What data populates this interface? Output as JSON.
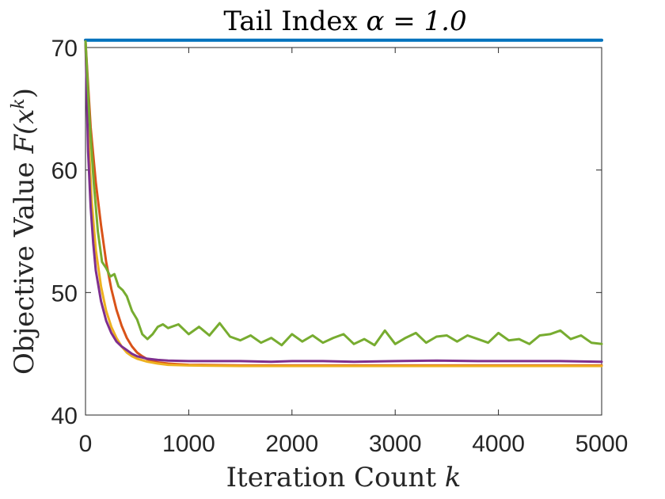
{
  "chart_data": {
    "type": "line",
    "title": "Tail Index α = 1.0",
    "title_text": "Tail Index ",
    "title_math": "α = 1.0",
    "xlabel": "Iteration Count k",
    "xlabel_text": "Iteration Count ",
    "xlabel_math": "k",
    "ylabel": "Objective Value F(x^k)",
    "ylabel_text": "Objective Value ",
    "ylabel_math_base": "F(x",
    "ylabel_math_sup": "k",
    "ylabel_math_close": ")",
    "xlim": [
      0,
      5000
    ],
    "ylim": [
      40,
      70
    ],
    "xticks": [
      0,
      1000,
      2000,
      3000,
      4000,
      5000
    ],
    "yticks": [
      40,
      50,
      60,
      70
    ],
    "grid": false,
    "series": [
      {
        "name": "blue",
        "color": "#0072BD",
        "x": [
          0,
          5000
        ],
        "y": [
          70.6,
          70.6
        ]
      },
      {
        "name": "orange",
        "color": "#D95319",
        "x": [
          0,
          50,
          100,
          150,
          200,
          250,
          300,
          350,
          400,
          450,
          500,
          550,
          600,
          700,
          800,
          1000,
          1500,
          2000,
          3000,
          4000,
          5000
        ],
        "y": [
          70.5,
          63.5,
          59.0,
          55.5,
          52.5,
          50.3,
          48.6,
          47.3,
          46.3,
          45.6,
          45.1,
          44.8,
          44.55,
          44.3,
          44.2,
          44.1,
          44.05,
          44.05,
          44.05,
          44.05,
          44.05
        ]
      },
      {
        "name": "yellow",
        "color": "#EDB120",
        "x": [
          0,
          30,
          60,
          100,
          150,
          200,
          250,
          300,
          350,
          400,
          450,
          500,
          600,
          700,
          800,
          1000,
          1500,
          2000,
          3000,
          4000,
          5000
        ],
        "y": [
          70.5,
          62.5,
          57.5,
          53.5,
          50.5,
          48.5,
          47.2,
          46.3,
          45.6,
          45.1,
          44.8,
          44.6,
          44.35,
          44.2,
          44.1,
          44.05,
          44.0,
          44.0,
          44.0,
          44.0,
          44.0
        ]
      },
      {
        "name": "purple",
        "color": "#7E2F8E",
        "x": [
          0,
          25,
          50,
          75,
          100,
          150,
          200,
          250,
          300,
          350,
          400,
          450,
          500,
          600,
          700,
          800,
          1000,
          1200,
          1500,
          1800,
          2000,
          2300,
          2600,
          3000,
          3400,
          3800,
          4200,
          4600,
          5000
        ],
        "y": [
          70.5,
          61.5,
          57.0,
          54.0,
          51.8,
          49.3,
          47.7,
          46.7,
          46.0,
          45.6,
          45.3,
          45.0,
          44.8,
          44.6,
          44.5,
          44.45,
          44.4,
          44.4,
          44.4,
          44.35,
          44.4,
          44.4,
          44.35,
          44.4,
          44.45,
          44.4,
          44.4,
          44.4,
          44.35
        ]
      },
      {
        "name": "green",
        "color": "#77AC30",
        "x": [
          0,
          40,
          80,
          120,
          160,
          200,
          240,
          280,
          320,
          360,
          400,
          450,
          500,
          550,
          600,
          650,
          700,
          750,
          800,
          900,
          1000,
          1100,
          1200,
          1300,
          1400,
          1500,
          1600,
          1700,
          1800,
          1900,
          2000,
          2100,
          2200,
          2300,
          2400,
          2500,
          2600,
          2700,
          2800,
          2900,
          3000,
          3100,
          3200,
          3300,
          3400,
          3500,
          3600,
          3700,
          3800,
          3900,
          4000,
          4100,
          4200,
          4300,
          4400,
          4500,
          4600,
          4700,
          4800,
          4900,
          5000
        ],
        "y": [
          70.5,
          64.0,
          59.0,
          55.0,
          52.5,
          52.0,
          51.3,
          51.5,
          50.5,
          50.2,
          49.7,
          48.5,
          47.8,
          46.6,
          46.2,
          46.6,
          47.2,
          47.4,
          47.1,
          47.4,
          46.6,
          47.2,
          46.5,
          47.5,
          46.4,
          46.1,
          46.5,
          45.9,
          46.3,
          45.7,
          46.6,
          46.0,
          46.5,
          45.9,
          46.3,
          46.6,
          45.8,
          46.2,
          45.7,
          46.9,
          45.8,
          46.3,
          46.7,
          45.9,
          46.4,
          46.5,
          46.0,
          46.5,
          46.2,
          45.9,
          46.7,
          46.1,
          46.2,
          45.8,
          46.5,
          46.6,
          46.9,
          46.2,
          46.5,
          45.9,
          45.8
        ]
      }
    ]
  }
}
